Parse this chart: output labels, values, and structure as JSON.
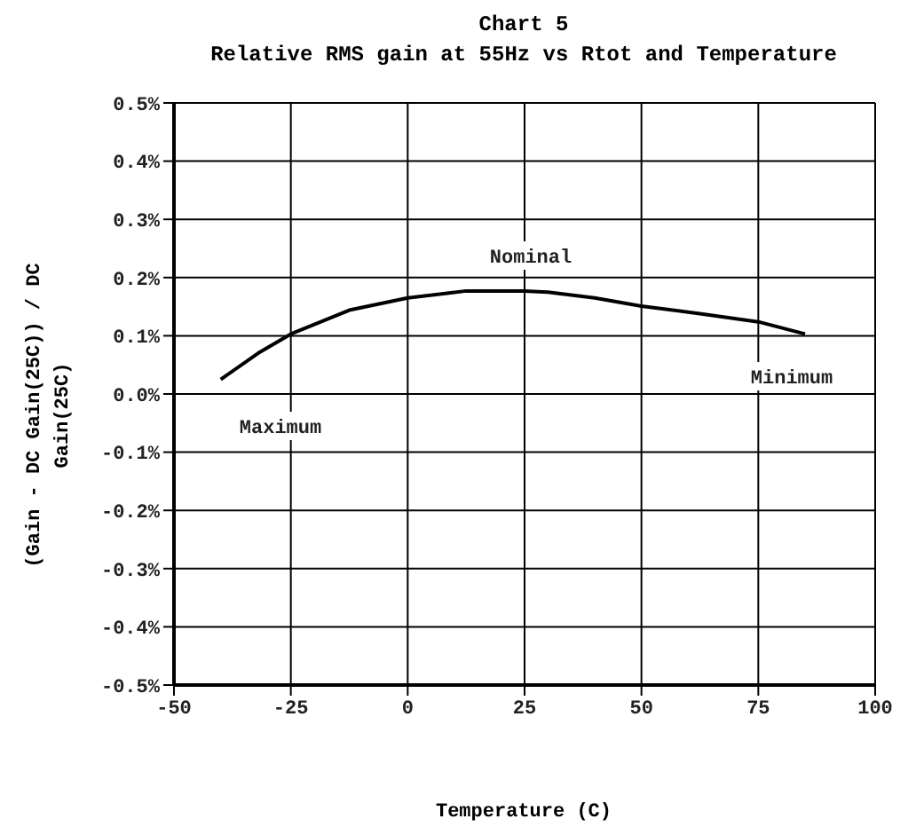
{
  "chart_data": {
    "type": "line",
    "title": "Chart 5",
    "subtitle": "Relative RMS gain at 55Hz vs Rtot and Temperature",
    "xlabel": "Temperature (C)",
    "ylabel": "(Gain - DC Gain(25C)) / DC Gain(25C)",
    "x": [
      -40,
      -32,
      -25,
      -12.5,
      0,
      12.5,
      25,
      30,
      40,
      50,
      62.5,
      75,
      85
    ],
    "series": [
      {
        "color": "#000000",
        "values": [
          0.025,
          0.07,
          0.103,
          0.144,
          0.165,
          0.177,
          0.177,
          0.175,
          0.165,
          0.151,
          0.138,
          0.124,
          0.103
        ]
      }
    ],
    "xlim": [
      -50,
      100
    ],
    "xticks": [
      -50,
      -25,
      0,
      25,
      50,
      75,
      100
    ],
    "ylim": [
      -0.5,
      0.5
    ],
    "yticks": [
      {
        "value": -0.5,
        "label": "-0.5%"
      },
      {
        "value": -0.4,
        "label": "-0.4%"
      },
      {
        "value": -0.3,
        "label": "-0.3%"
      },
      {
        "value": -0.2,
        "label": "-0.2%"
      },
      {
        "value": -0.1,
        "label": "-0.1%"
      },
      {
        "value": 0,
        "label": "0.0%"
      },
      {
        "value": 0.1,
        "label": "0.1%"
      },
      {
        "value": 0.2,
        "label": "0.2%"
      },
      {
        "value": 0.3,
        "label": "0.3%"
      },
      {
        "value": 0.4,
        "label": "0.4%"
      },
      {
        "value": 0.5,
        "label": "0.5%"
      }
    ],
    "annotations": [
      "Nominal",
      "Maximum",
      "Minimum"
    ],
    "grid": true,
    "legend": false,
    "marker": "none",
    "line_style": "solid"
  }
}
